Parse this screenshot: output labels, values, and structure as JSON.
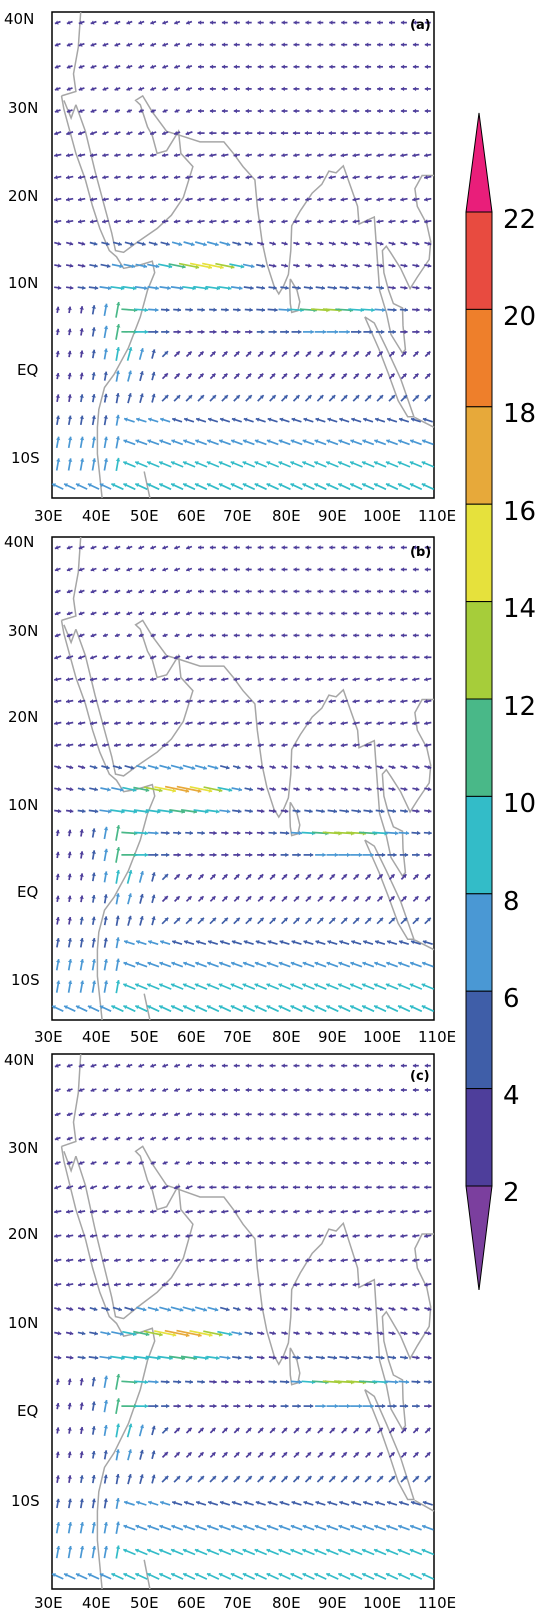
{
  "chart_data": [
    {
      "type": "vector-field",
      "panel_label": "(a)",
      "lon_range": [
        30,
        110
      ],
      "lat_range": [
        -15,
        40
      ],
      "x_ticks": [
        "30E",
        "40E",
        "50E",
        "60E",
        "70E",
        "80E",
        "90E",
        "100E",
        "110E"
      ],
      "y_ticks": [
        "40N",
        "30N",
        "20N",
        "10N",
        "EQ",
        "10S"
      ],
      "max_speed": 15.5,
      "jet_center": [
        62,
        11
      ],
      "bay_jet": [
        88,
        6,
        13
      ]
    },
    {
      "type": "vector-field",
      "panel_label": "(b)",
      "lon_range": [
        30,
        110
      ],
      "lat_range": [
        -15,
        40
      ],
      "x_ticks": [
        "30E",
        "40E",
        "50E",
        "60E",
        "70E",
        "80E",
        "90E",
        "100E",
        "110E"
      ],
      "y_ticks": [
        "40N",
        "30N",
        "20N",
        "10N",
        "EQ",
        "10S"
      ],
      "max_speed": 17.5,
      "jet_center": [
        58,
        11
      ],
      "bay_jet": [
        92,
        6,
        14
      ]
    },
    {
      "type": "vector-field",
      "panel_label": "(c)",
      "lon_range": [
        30,
        110
      ],
      "lat_range": [
        -15,
        40
      ],
      "x_ticks": [
        "30E",
        "40E",
        "50E",
        "60E",
        "70E",
        "80E",
        "90E",
        "100E",
        "110E"
      ],
      "y_ticks": [
        "40N",
        "30N",
        "20N",
        "10N",
        "EQ",
        "10S"
      ],
      "max_speed": 18,
      "jet_center": [
        58,
        11
      ],
      "bay_jet": [
        92,
        6,
        14
      ]
    }
  ],
  "colorbar": {
    "levels": [
      "2",
      "4",
      "6",
      "8",
      "10",
      "12",
      "14",
      "16",
      "18",
      "20",
      "22"
    ],
    "colors": [
      "#7b3f9e",
      "#4e3e9b",
      "#3f5ea8",
      "#4a98d4",
      "#33bcc8",
      "#49b888",
      "#a6cd3a",
      "#e6e13c",
      "#e7a93a",
      "#ee7f2b",
      "#e84b40",
      "#e91e7a"
    ]
  }
}
